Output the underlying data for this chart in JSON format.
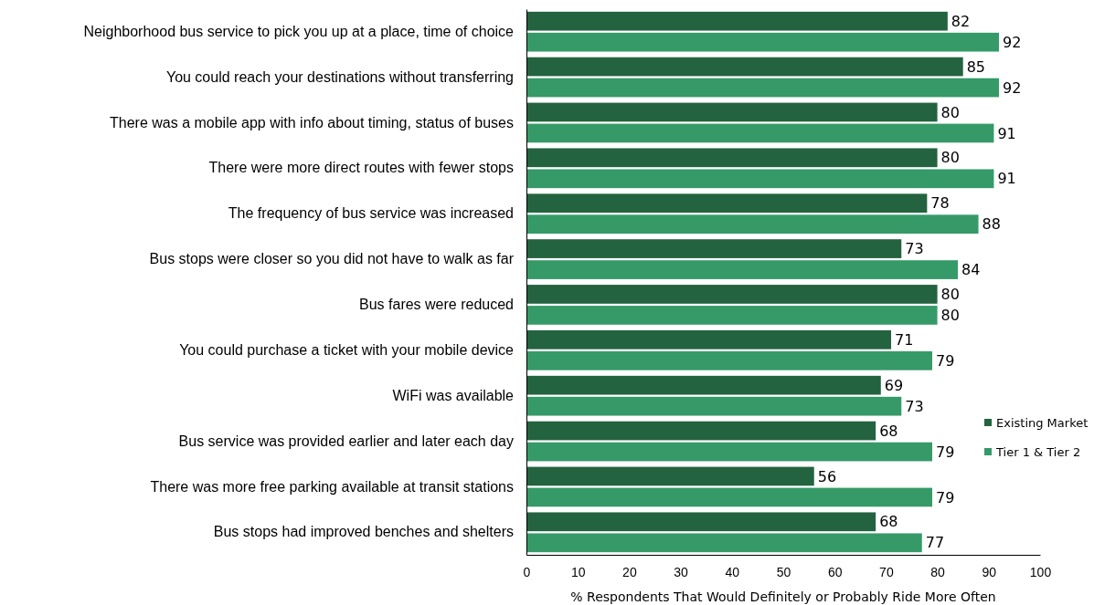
{
  "chart_data": {
    "type": "bar",
    "orientation": "horizontal",
    "xlabel": "% Respondents That Would Definitely or Probably Ride More Often",
    "categories": [
      "Neighborhood bus service to pick you up at a place, time of choice",
      "You could reach your destinations without transferring",
      "There was a mobile app with info about timing, status of buses",
      "There were more direct routes with fewer stops",
      "The frequency of bus service was increased",
      "Bus stops were closer so you did not have to walk as far",
      "Bus fares were reduced",
      "You could purchase a ticket with your mobile device",
      "WiFi was available",
      "Bus service was provided earlier and later each day",
      "There was more free parking available at transit stations",
      "Bus stops had improved benches and shelters"
    ],
    "series": [
      {
        "name": "Existing Market",
        "color": "#23633f",
        "values": [
          82,
          85,
          80,
          80,
          78,
          73,
          80,
          71,
          69,
          68,
          56,
          68
        ]
      },
      {
        "name": "Tier 1 & Tier 2",
        "color": "#359a68",
        "values": [
          92,
          92,
          91,
          91,
          88,
          84,
          80,
          79,
          73,
          79,
          79,
          77
        ]
      }
    ],
    "xlim": [
      0,
      100
    ],
    "xticks": [
      0,
      10,
      20,
      30,
      40,
      50,
      60,
      70,
      80,
      90,
      100
    ],
    "data_labels": true,
    "grid": false,
    "legend": "right"
  }
}
